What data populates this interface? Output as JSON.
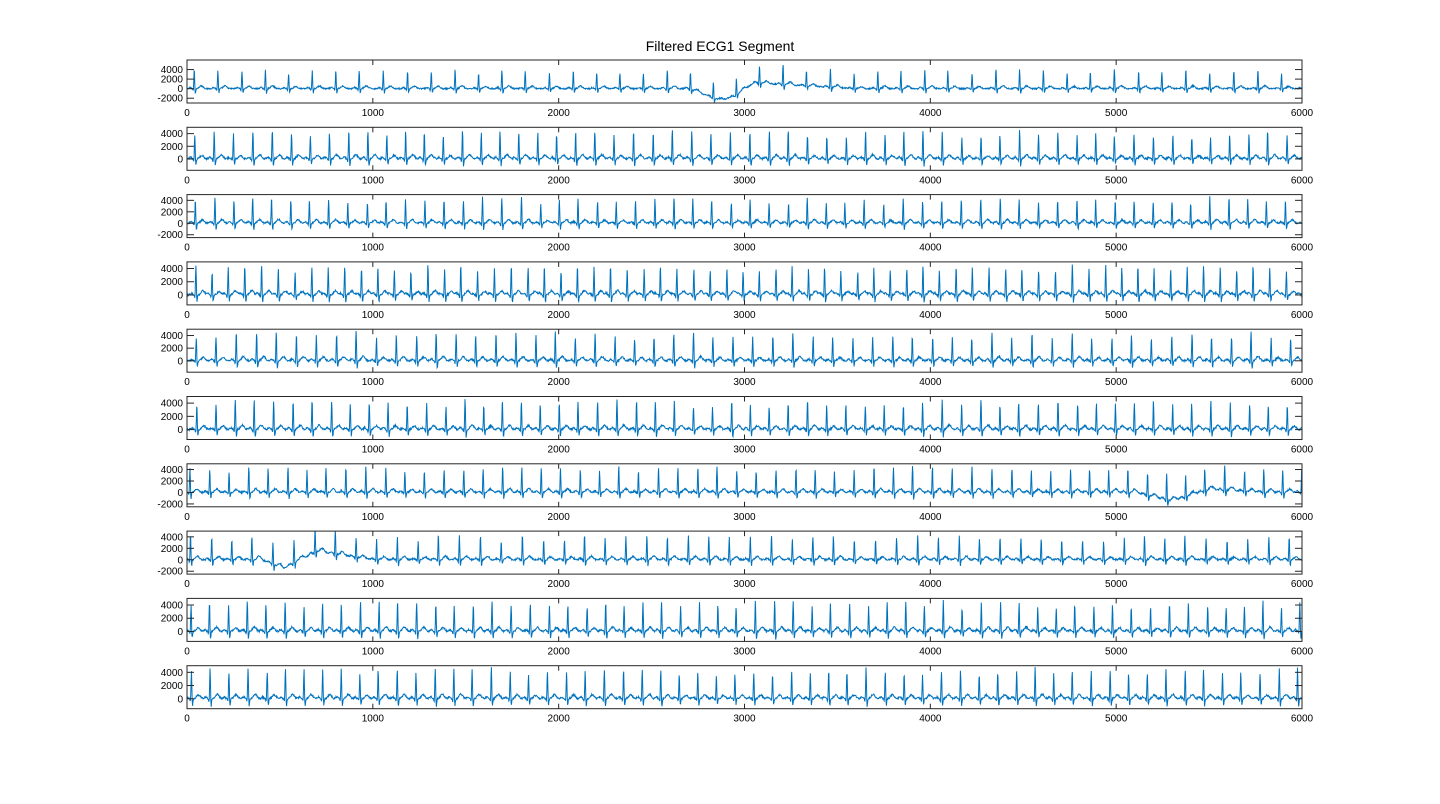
{
  "figure": {
    "title": "Filtered ECG1 Segment",
    "line_color": "#0072BD",
    "axes_color": "#262626"
  },
  "chart_data": [
    {
      "type": "line",
      "title": "Filtered ECG1 Segment",
      "xlim": [
        0,
        6000
      ],
      "ylim": [
        -3000,
        6000
      ],
      "x_ticks": [
        0,
        1000,
        2000,
        3000,
        4000,
        5000,
        6000
      ],
      "x_tick_labels": [
        "0",
        "1000",
        "2000",
        "3000",
        "4000",
        "5000",
        "6000"
      ],
      "y_ticks": [
        -2000,
        0,
        2000,
        4000
      ],
      "y_tick_labels": [
        "-2000",
        "0",
        "2000",
        "4000"
      ],
      "series": [
        {
          "color": "#0072BD",
          "r_peak_interval": 127,
          "r_peak_amplitude": 3800,
          "baseline_drift": [
            {
              "x": 2700,
              "y": 0
            },
            {
              "x": 2870,
              "y": -2500
            },
            {
              "x": 2950,
              "y": -1500
            },
            {
              "x": 3050,
              "y": 1200
            },
            {
              "x": 3600,
              "y": 0
            }
          ]
        }
      ]
    },
    {
      "type": "line",
      "xlim": [
        0,
        6000
      ],
      "ylim": [
        -1800,
        5000
      ],
      "x_ticks": [
        0,
        1000,
        2000,
        3000,
        4000,
        5000,
        6000
      ],
      "x_tick_labels": [
        "0",
        "1000",
        "2000",
        "3000",
        "4000",
        "5000",
        "6000"
      ],
      "y_ticks": [
        0,
        2000,
        4000
      ],
      "y_tick_labels": [
        "0",
        "2000",
        "4000"
      ],
      "series": [
        {
          "color": "#0072BD",
          "r_peak_interval": 103,
          "r_peak_amplitude": 4200,
          "baseline_drift": []
        }
      ]
    },
    {
      "type": "line",
      "xlim": [
        0,
        6000
      ],
      "ylim": [
        -2500,
        5000
      ],
      "x_ticks": [
        0,
        1000,
        2000,
        3000,
        4000,
        5000,
        6000
      ],
      "x_tick_labels": [
        "0",
        "1000",
        "2000",
        "3000",
        "4000",
        "5000",
        "6000"
      ],
      "y_ticks": [
        -2000,
        0,
        2000,
        4000
      ],
      "y_tick_labels": [
        "-2000",
        "0",
        "2000",
        "4000"
      ],
      "series": [
        {
          "color": "#0072BD",
          "r_peak_interval": 103,
          "r_peak_amplitude": 4200,
          "baseline_drift": []
        }
      ]
    },
    {
      "type": "line",
      "xlim": [
        0,
        6000
      ],
      "ylim": [
        -1500,
        5000
      ],
      "x_ticks": [
        0,
        1000,
        2000,
        3000,
        4000,
        5000,
        6000
      ],
      "x_tick_labels": [
        "0",
        "1000",
        "2000",
        "3000",
        "4000",
        "5000",
        "6000"
      ],
      "y_ticks": [
        0,
        2000,
        4000
      ],
      "y_tick_labels": [
        "0",
        "2000",
        "4000"
      ],
      "series": [
        {
          "color": "#0072BD",
          "r_peak_interval": 89,
          "r_peak_amplitude": 4200,
          "baseline_drift": []
        }
      ]
    },
    {
      "type": "line",
      "xlim": [
        0,
        6000
      ],
      "ylim": [
        -1800,
        5000
      ],
      "x_ticks": [
        0,
        1000,
        2000,
        3000,
        4000,
        5000,
        6000
      ],
      "x_tick_labels": [
        "0",
        "1000",
        "2000",
        "3000",
        "4000",
        "5000",
        "6000"
      ],
      "y_ticks": [
        0,
        2000,
        4000
      ],
      "y_tick_labels": [
        "0",
        "2000",
        "4000"
      ],
      "series": [
        {
          "color": "#0072BD",
          "r_peak_interval": 107,
          "r_peak_amplitude": 4300,
          "baseline_drift": []
        }
      ]
    },
    {
      "type": "line",
      "xlim": [
        0,
        6000
      ],
      "ylim": [
        -1500,
        5000
      ],
      "x_ticks": [
        0,
        1000,
        2000,
        3000,
        4000,
        5000,
        6000
      ],
      "x_tick_labels": [
        "0",
        "1000",
        "2000",
        "3000",
        "4000",
        "5000",
        "6000"
      ],
      "y_ticks": [
        0,
        2000,
        4000
      ],
      "y_tick_labels": [
        "0",
        "2000",
        "4000"
      ],
      "series": [
        {
          "color": "#0072BD",
          "r_peak_interval": 103,
          "r_peak_amplitude": 4200,
          "baseline_drift": []
        }
      ]
    },
    {
      "type": "line",
      "xlim": [
        0,
        6000
      ],
      "ylim": [
        -2500,
        5000
      ],
      "x_ticks": [
        0,
        1000,
        2000,
        3000,
        4000,
        5000,
        6000
      ],
      "x_tick_labels": [
        "0",
        "1000",
        "2000",
        "3000",
        "4000",
        "5000",
        "6000"
      ],
      "y_ticks": [
        -2000,
        0,
        2000,
        4000
      ],
      "y_tick_labels": [
        "-2000",
        "0",
        "2000",
        "4000"
      ],
      "series": [
        {
          "color": "#0072BD",
          "r_peak_interval": 105,
          "r_peak_amplitude": 4200,
          "baseline_drift": [
            {
              "x": 5100,
              "y": 0
            },
            {
              "x": 5300,
              "y": -1500
            },
            {
              "x": 5500,
              "y": 500
            },
            {
              "x": 5800,
              "y": 0
            }
          ]
        }
      ]
    },
    {
      "type": "line",
      "xlim": [
        0,
        6000
      ],
      "ylim": [
        -2500,
        5000
      ],
      "x_ticks": [
        0,
        1000,
        2000,
        3000,
        4000,
        5000,
        6000
      ],
      "x_tick_labels": [
        "0",
        "1000",
        "2000",
        "3000",
        "4000",
        "5000",
        "6000"
      ],
      "y_ticks": [
        -2000,
        0,
        2000,
        4000
      ],
      "y_tick_labels": [
        "-2000",
        "0",
        "2000",
        "4000"
      ],
      "series": [
        {
          "color": "#0072BD",
          "r_peak_interval": 111,
          "r_peak_amplitude": 4000,
          "baseline_drift": [
            {
              "x": 400,
              "y": 0
            },
            {
              "x": 520,
              "y": -1500
            },
            {
              "x": 700,
              "y": 1500
            },
            {
              "x": 1000,
              "y": 0
            }
          ]
        }
      ]
    },
    {
      "type": "line",
      "xlim": [
        0,
        6000
      ],
      "ylim": [
        -1500,
        5000
      ],
      "x_ticks": [
        0,
        1000,
        2000,
        3000,
        4000,
        5000,
        6000
      ],
      "x_tick_labels": [
        "0",
        "1000",
        "2000",
        "3000",
        "4000",
        "5000",
        "6000"
      ],
      "y_ticks": [
        0,
        2000,
        4000
      ],
      "y_tick_labels": [
        "0",
        "2000",
        "4000"
      ],
      "series": [
        {
          "color": "#0072BD",
          "r_peak_interval": 101,
          "r_peak_amplitude": 4300,
          "baseline_drift": []
        }
      ]
    },
    {
      "type": "line",
      "xlim": [
        0,
        6000
      ],
      "ylim": [
        -1500,
        5000
      ],
      "x_ticks": [
        0,
        1000,
        2000,
        3000,
        4000,
        5000,
        6000
      ],
      "x_tick_labels": [
        "0",
        "1000",
        "2000",
        "3000",
        "4000",
        "5000",
        "6000"
      ],
      "y_ticks": [
        0,
        2000,
        4000
      ],
      "y_tick_labels": [
        "0",
        "2000",
        "4000"
      ],
      "series": [
        {
          "color": "#0072BD",
          "r_peak_interval": 101,
          "r_peak_amplitude": 4300,
          "baseline_drift": []
        }
      ]
    }
  ]
}
